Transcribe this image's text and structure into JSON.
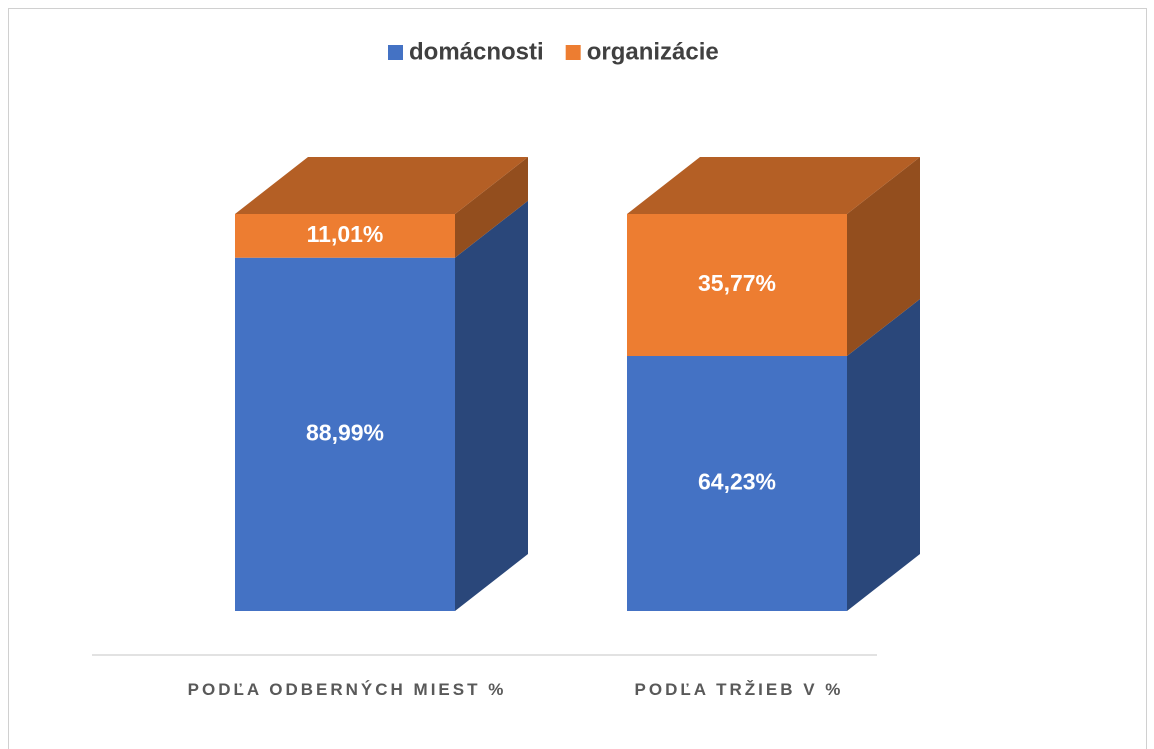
{
  "chart_data": {
    "type": "bar3d_stacked",
    "categories": [
      "PODĽA ODBERNÝCH MIEST %",
      "PODĽA TRŽIEB V %"
    ],
    "series": [
      {
        "name": "domácnosti",
        "color": "#4472c4",
        "values": [
          88.99,
          64.23
        ],
        "value_labels": [
          "88,99%",
          "64,23%"
        ]
      },
      {
        "name": "organizácie",
        "color": "#ed7d31",
        "values": [
          11.01,
          35.77
        ],
        "value_labels": [
          "11,01%",
          "35,77%"
        ]
      }
    ],
    "ylim": [
      0,
      100
    ],
    "legend": "top"
  }
}
